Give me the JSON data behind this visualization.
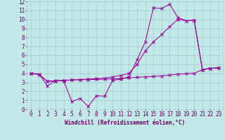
{
  "xlabel": "Windchill (Refroidissement éolien,°C)",
  "xlim": [
    -0.5,
    23.5
  ],
  "ylim": [
    0,
    12
  ],
  "xticks": [
    0,
    1,
    2,
    3,
    4,
    5,
    6,
    7,
    8,
    9,
    10,
    11,
    12,
    13,
    14,
    15,
    16,
    17,
    18,
    19,
    20,
    21,
    22,
    23
  ],
  "yticks": [
    0,
    1,
    2,
    3,
    4,
    5,
    6,
    7,
    8,
    9,
    10,
    11,
    12
  ],
  "bg_color": "#c2e8e8",
  "grid_color": "#a8d0d0",
  "line_color": "#990099",
  "line1_x": [
    0,
    1,
    2,
    3,
    4,
    5,
    6,
    7,
    8,
    9,
    10,
    11,
    12,
    13,
    14,
    15,
    16,
    17,
    18,
    19,
    20,
    21,
    22,
    23
  ],
  "line1_y": [
    4.0,
    3.9,
    2.6,
    3.2,
    3.15,
    0.85,
    1.2,
    0.3,
    1.5,
    1.45,
    3.2,
    3.35,
    3.6,
    5.5,
    7.5,
    11.3,
    11.2,
    11.7,
    10.2,
    9.85,
    9.9,
    4.4,
    4.55,
    4.6
  ],
  "line2_x": [
    0,
    1,
    2,
    3,
    4,
    5,
    6,
    7,
    8,
    9,
    10,
    11,
    12,
    13,
    14,
    15,
    16,
    17,
    18,
    19,
    20,
    21,
    22,
    23
  ],
  "line2_y": [
    4.0,
    3.85,
    3.1,
    3.15,
    3.2,
    3.25,
    3.3,
    3.35,
    3.4,
    3.45,
    3.6,
    3.75,
    4.0,
    5.0,
    6.5,
    7.5,
    8.3,
    9.2,
    10.0,
    9.85,
    9.9,
    4.4,
    4.55,
    4.6
  ],
  "line3_x": [
    0,
    1,
    2,
    3,
    4,
    5,
    6,
    7,
    8,
    9,
    10,
    11,
    12,
    13,
    14,
    15,
    16,
    17,
    18,
    19,
    20,
    21,
    22,
    23
  ],
  "line3_y": [
    4.0,
    3.85,
    3.1,
    3.15,
    3.2,
    3.25,
    3.28,
    3.3,
    3.32,
    3.35,
    3.38,
    3.4,
    3.5,
    3.55,
    3.6,
    3.65,
    3.7,
    3.8,
    3.9,
    3.95,
    4.0,
    4.4,
    4.55,
    4.6
  ],
  "font_color": "#660066",
  "tick_fontsize": 5.5,
  "xlabel_fontsize": 5.5
}
